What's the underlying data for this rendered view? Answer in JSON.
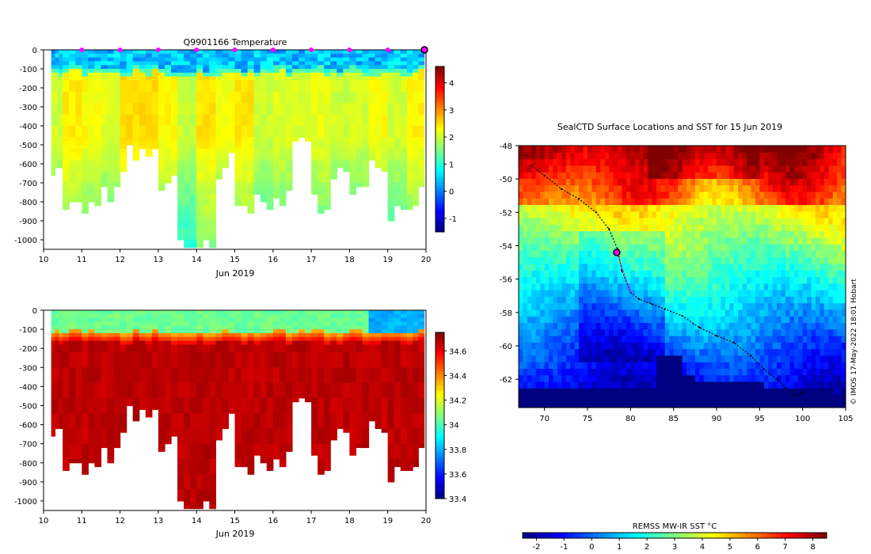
{
  "chart_data": [
    {
      "id": "temp",
      "type": "heatmap",
      "title": "Q9901166  Temperature",
      "xlabel": "Jun 2019",
      "ylabel": "",
      "xlim": [
        10,
        20
      ],
      "ylim": [
        -1050,
        0
      ],
      "xticks": [
        10,
        11,
        12,
        13,
        14,
        15,
        16,
        17,
        18,
        19,
        20
      ],
      "yticks": [
        0,
        -100,
        -200,
        -300,
        -400,
        -500,
        -600,
        -700,
        -800,
        -900,
        -1000
      ],
      "colorbar": {
        "min": -1.5,
        "max": 4.6,
        "ticks": [
          -1,
          0,
          1,
          2,
          3,
          4
        ]
      },
      "profile_x": [
        10.25,
        10.75,
        11.25,
        11.75,
        12.25,
        12.75,
        13.25,
        13.75,
        14.25,
        14.75,
        15.25,
        15.75,
        16.25,
        16.75,
        17.25,
        17.75,
        18.25,
        18.75,
        19.25,
        19.75
      ],
      "profile_max_depth": [
        -610,
        -790,
        -790,
        -720,
        -560,
        -520,
        -700,
        -1030,
        -1030,
        -600,
        -810,
        -770,
        -780,
        -520,
        -820,
        -600,
        -720,
        -630,
        -860,
        -770
      ],
      "marker_days": [
        11,
        12,
        13,
        14,
        15,
        16,
        17,
        18,
        19
      ],
      "current_day": 20,
      "mixed_layer_value": 0.2,
      "core_value": 2.2
    },
    {
      "id": "salinity",
      "type": "heatmap",
      "title": "",
      "xlabel": "Jun 2019",
      "ylabel": "",
      "xlim": [
        10,
        20
      ],
      "ylim": [
        -1050,
        0
      ],
      "xticks": [
        10,
        11,
        12,
        13,
        14,
        15,
        16,
        17,
        18,
        19,
        20
      ],
      "yticks": [
        0,
        -100,
        -200,
        -300,
        -400,
        -500,
        -600,
        -700,
        -800,
        -900,
        -1000
      ],
      "colorbar": {
        "min": 33.4,
        "max": 34.75,
        "ticks": [
          33.4,
          33.6,
          33.8,
          34,
          34.2,
          34.4,
          34.6
        ]
      },
      "surface_value": 34.05,
      "deep_value": 34.7
    },
    {
      "id": "sst_map",
      "type": "heatmap",
      "title": "SealCTD Surface Locations and SST for 15 Jun 2019",
      "xlabel": "",
      "ylabel": "",
      "xlim": [
        67,
        105
      ],
      "ylim": [
        -63.7,
        -48
      ],
      "xticks": [
        70,
        75,
        80,
        85,
        90,
        95,
        100,
        105
      ],
      "yticks": [
        -48,
        -50,
        -52,
        -54,
        -56,
        -58,
        -60,
        -62
      ],
      "colorbar_label": "REMSS MW-IR SST °C",
      "colorbar": {
        "min": -2.5,
        "max": 8.5,
        "ticks": [
          -2,
          -1,
          0,
          1,
          2,
          3,
          4,
          5,
          6,
          7,
          8
        ]
      },
      "track_lon": [
        68.5,
        70,
        72,
        74,
        76,
        77.5,
        78.5,
        79,
        80,
        81,
        82.5,
        84,
        86,
        88,
        90,
        92,
        94,
        95.5,
        97,
        98,
        99,
        100
      ],
      "track_lat": [
        -49.2,
        -49.8,
        -50.6,
        -51.2,
        -52,
        -53,
        -54.2,
        -55.5,
        -56.8,
        -57.2,
        -57.5,
        -57.8,
        -58.2,
        -58.9,
        -59.4,
        -59.8,
        -60.6,
        -61.4,
        -62,
        -62.5,
        -63,
        -62.8
      ],
      "recent_track_lon": [
        78.4,
        79,
        79.6,
        80.1
      ],
      "recent_track_lat": [
        -54.4,
        -55.3,
        -56.2,
        -56.9
      ],
      "current_position": {
        "lon": 78.4,
        "lat": -54.4
      },
      "coast_fit": [
        -62.9,
        -0.045
      ]
    }
  ],
  "credit": "© IMOS 17-May-2022 18:01 Hobart",
  "colors": {
    "marker": "#ff00ff",
    "track": "#000000"
  }
}
